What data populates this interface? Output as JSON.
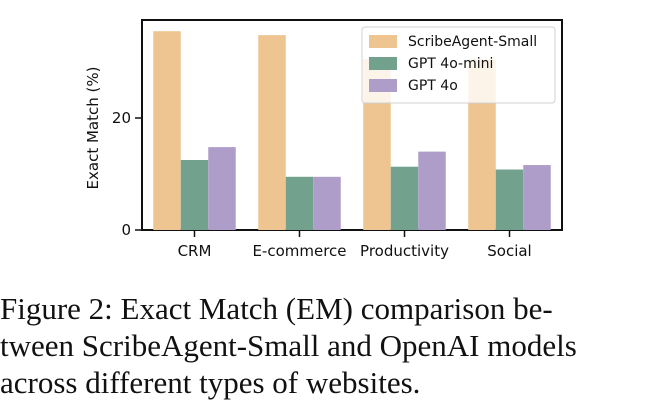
{
  "chart_data": {
    "type": "bar",
    "categories": [
      "CRM",
      "E-commerce",
      "Productivity",
      "Social"
    ],
    "series": [
      {
        "name": "ScribeAgent-Small",
        "color": "#EEC591",
        "values": [
          35.5,
          34.8,
          30.5,
          30.5
        ]
      },
      {
        "name": "GPT 4o-mini",
        "color": "#72A18D",
        "values": [
          12.5,
          9.5,
          11.3,
          10.8
        ]
      },
      {
        "name": "GPT 4o",
        "color": "#AF9DC9",
        "values": [
          14.8,
          9.5,
          14.0,
          11.6
        ]
      }
    ],
    "xlabel": "",
    "ylabel": "Exact Match (%)",
    "ylim": [
      0,
      37.5
    ],
    "yticks": [
      0,
      20
    ],
    "legend_position": "upper-right",
    "grid": false
  },
  "caption": {
    "lines": [
      "Figure 2:  Exact Match (EM) comparison be-",
      "tween ScribeAgent-Small and OpenAI models",
      "across different types of websites."
    ]
  }
}
